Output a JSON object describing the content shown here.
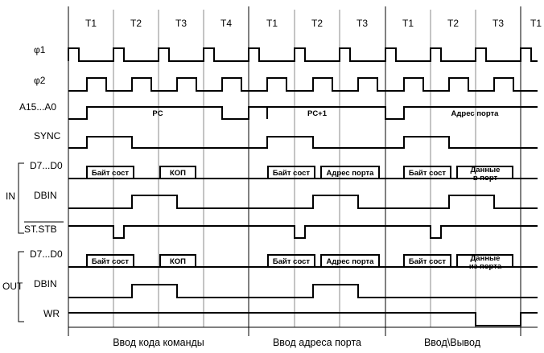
{
  "ticks": {
    "t1": "T1",
    "t2": "T2",
    "t3": "T3",
    "t4": "T4",
    "t1b": "T1",
    "t2b": "T2",
    "t3b": "T3",
    "t1c": "T1",
    "t2c": "T2",
    "t3c": "T3",
    "t1d": "T1"
  },
  "signals": {
    "phi1": "φ1",
    "phi2": "φ2",
    "addr": "A15...A0",
    "sync": "SYNC",
    "d_in": "D7...D0",
    "dbin_in": "DBIN",
    "ststb": "ST.STB",
    "d_out": "D7...D0",
    "dbin_out": "DBIN",
    "wr": "WR"
  },
  "groups": {
    "in": "IN",
    "out": "OUT"
  },
  "addr_bus": {
    "pc": "PC",
    "pc1": "PC+1",
    "port": "Адрес порта"
  },
  "data_bus": {
    "status": "Байт сост",
    "opcode": "КОП",
    "port_addr": "Адрес порта",
    "data_to_port_1": "Данные",
    "data_to_port_2": "в порт",
    "data_from_port_1": "Данные",
    "data_from_port_2": "из порта"
  },
  "phases": {
    "fetch": "Ввод кода команды",
    "port_addr": "Ввод адреса порта",
    "io": "Ввод\\Вывод"
  }
}
